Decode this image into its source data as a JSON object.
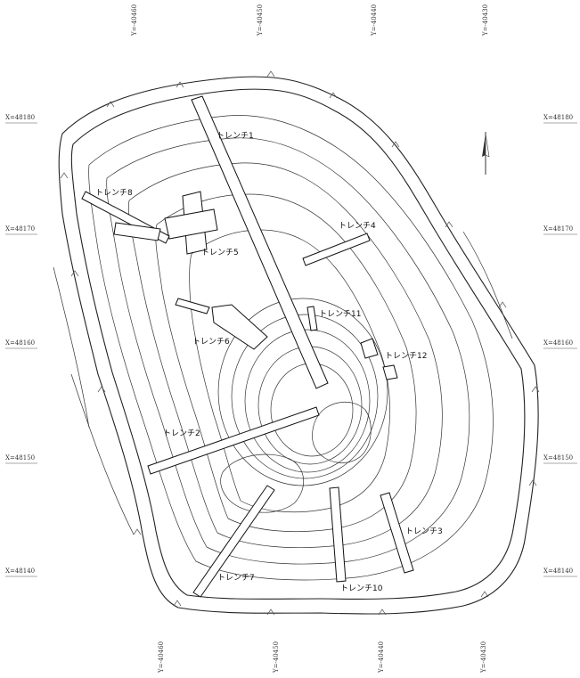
{
  "grid": {
    "y_top": [
      "Y=-40460",
      "Y=-40450",
      "Y=-40440",
      "Y=-40430"
    ],
    "y_bottom": [
      "Y=-40460",
      "Y=-40450",
      "Y=-40440",
      "Y=-40430"
    ],
    "x_left": [
      "X=48180",
      "X=48170",
      "X=48160",
      "X=48150",
      "X=48140"
    ],
    "x_right": [
      "X=48180",
      "X=48170",
      "X=48160",
      "X=48150",
      "X=48140"
    ]
  },
  "trenches": [
    {
      "id": "t1",
      "label": "トレンチ1"
    },
    {
      "id": "t2",
      "label": "トレンチ2"
    },
    {
      "id": "t3",
      "label": "トレンチ3"
    },
    {
      "id": "t4",
      "label": "トレンチ4"
    },
    {
      "id": "t5",
      "label": "トレンチ5"
    },
    {
      "id": "t6",
      "label": "トレンチ6"
    },
    {
      "id": "t7",
      "label": "トレンチ7"
    },
    {
      "id": "t8",
      "label": "トレンチ8"
    },
    {
      "id": "t10",
      "label": "トレンチ10"
    },
    {
      "id": "t11",
      "label": "トレンチ11"
    },
    {
      "id": "t12",
      "label": "トレンチ12"
    }
  ],
  "north_arrow": {
    "icon": "north-arrow-icon"
  }
}
